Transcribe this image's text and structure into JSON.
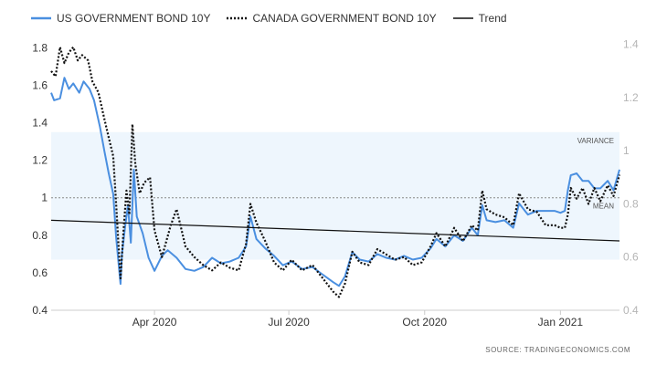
{
  "legend": {
    "us_label": "US GOVERNMENT BOND 10Y",
    "ca_label": "CANADA GOVERNMENT BOND 10Y",
    "trend_label": "Trend"
  },
  "annotations": {
    "variance": "VARIANCE",
    "mean": "MEAN"
  },
  "source": "SOURCE:  TRADINGECONOMICS.COM",
  "colors": {
    "us": "#4a8fe0",
    "ca": "#111111",
    "trend": "#111111",
    "variance_band": "#eef6fd"
  },
  "chart_data": {
    "type": "line",
    "x_range": [
      "2020-01-22",
      "2021-02-10"
    ],
    "x_tick_labels": [
      "Apr 2020",
      "Jul 2020",
      "Oct 2020",
      "Jan 2021"
    ],
    "x_ticks": [
      "2020-04-01",
      "2020-07-01",
      "2020-10-01",
      "2021-01-01"
    ],
    "y_left": {
      "ticks": [
        0.4,
        0.6,
        0.8,
        1,
        1.2,
        1.4,
        1.6,
        1.8
      ],
      "range": [
        0.4,
        1.86
      ]
    },
    "y_right": {
      "ticks": [
        0.4,
        0.6,
        0.8,
        1,
        1.2,
        1.4
      ],
      "range": [
        0.4,
        1.43
      ]
    },
    "variance_band": [
      0.67,
      1.35
    ],
    "mean": 1.0,
    "series": [
      {
        "name": "US GOVERNMENT BOND 10Y",
        "axis": "left",
        "style": "solid",
        "points": [
          [
            "2020-01-22",
            1.56
          ],
          [
            "2020-01-24",
            1.52
          ],
          [
            "2020-01-28",
            1.53
          ],
          [
            "2020-01-31",
            1.64
          ],
          [
            "2020-02-03",
            1.58
          ],
          [
            "2020-02-06",
            1.61
          ],
          [
            "2020-02-10",
            1.56
          ],
          [
            "2020-02-13",
            1.62
          ],
          [
            "2020-02-17",
            1.58
          ],
          [
            "2020-02-20",
            1.52
          ],
          [
            "2020-02-24",
            1.38
          ],
          [
            "2020-02-27",
            1.25
          ],
          [
            "2020-03-01",
            1.13
          ],
          [
            "2020-03-04",
            1.02
          ],
          [
            "2020-03-06",
            0.79
          ],
          [
            "2020-03-09",
            0.54
          ],
          [
            "2020-03-10",
            0.7
          ],
          [
            "2020-03-12",
            0.84
          ],
          [
            "2020-03-14",
            0.96
          ],
          [
            "2020-03-16",
            0.76
          ],
          [
            "2020-03-18",
            1.15
          ],
          [
            "2020-03-20",
            0.9
          ],
          [
            "2020-03-24",
            0.81
          ],
          [
            "2020-03-28",
            0.68
          ],
          [
            "2020-04-01",
            0.61
          ],
          [
            "2020-04-06",
            0.69
          ],
          [
            "2020-04-10",
            0.72
          ],
          [
            "2020-04-16",
            0.68
          ],
          [
            "2020-04-22",
            0.62
          ],
          [
            "2020-04-28",
            0.61
          ],
          [
            "2020-05-04",
            0.63
          ],
          [
            "2020-05-10",
            0.68
          ],
          [
            "2020-05-16",
            0.65
          ],
          [
            "2020-05-22",
            0.66
          ],
          [
            "2020-05-28",
            0.68
          ],
          [
            "2020-06-02",
            0.74
          ],
          [
            "2020-06-05",
            0.9
          ],
          [
            "2020-06-09",
            0.78
          ],
          [
            "2020-06-15",
            0.73
          ],
          [
            "2020-06-21",
            0.69
          ],
          [
            "2020-06-27",
            0.64
          ],
          [
            "2020-07-03",
            0.66
          ],
          [
            "2020-07-10",
            0.62
          ],
          [
            "2020-07-17",
            0.63
          ],
          [
            "2020-07-24",
            0.59
          ],
          [
            "2020-07-31",
            0.55
          ],
          [
            "2020-08-04",
            0.53
          ],
          [
            "2020-08-08",
            0.58
          ],
          [
            "2020-08-13",
            0.71
          ],
          [
            "2020-08-18",
            0.67
          ],
          [
            "2020-08-24",
            0.66
          ],
          [
            "2020-08-30",
            0.7
          ],
          [
            "2020-09-05",
            0.68
          ],
          [
            "2020-09-11",
            0.67
          ],
          [
            "2020-09-17",
            0.69
          ],
          [
            "2020-09-23",
            0.67
          ],
          [
            "2020-09-29",
            0.68
          ],
          [
            "2020-10-05",
            0.73
          ],
          [
            "2020-10-09",
            0.78
          ],
          [
            "2020-10-15",
            0.74
          ],
          [
            "2020-10-21",
            0.8
          ],
          [
            "2020-10-27",
            0.77
          ],
          [
            "2020-11-02",
            0.84
          ],
          [
            "2020-11-06",
            0.8
          ],
          [
            "2020-11-09",
            0.96
          ],
          [
            "2020-11-12",
            0.88
          ],
          [
            "2020-11-18",
            0.87
          ],
          [
            "2020-11-24",
            0.88
          ],
          [
            "2020-11-30",
            0.84
          ],
          [
            "2020-12-04",
            0.97
          ],
          [
            "2020-12-10",
            0.91
          ],
          [
            "2020-12-16",
            0.93
          ],
          [
            "2020-12-22",
            0.93
          ],
          [
            "2020-12-28",
            0.93
          ],
          [
            "2021-01-01",
            0.92
          ],
          [
            "2021-01-04",
            0.93
          ],
          [
            "2021-01-06",
            1.04
          ],
          [
            "2021-01-08",
            1.12
          ],
          [
            "2021-01-12",
            1.13
          ],
          [
            "2021-01-16",
            1.09
          ],
          [
            "2021-01-20",
            1.09
          ],
          [
            "2021-01-24",
            1.05
          ],
          [
            "2021-01-28",
            1.05
          ],
          [
            "2021-02-02",
            1.09
          ],
          [
            "2021-02-06",
            1.04
          ],
          [
            "2021-02-10",
            1.15
          ]
        ]
      },
      {
        "name": "CANADA GOVERNMENT BOND 10Y",
        "axis": "right",
        "style": "dotted",
        "points": [
          [
            "2020-01-22",
            1.3
          ],
          [
            "2020-01-25",
            1.28
          ],
          [
            "2020-01-28",
            1.39
          ],
          [
            "2020-01-31",
            1.33
          ],
          [
            "2020-02-03",
            1.37
          ],
          [
            "2020-02-06",
            1.39
          ],
          [
            "2020-02-09",
            1.34
          ],
          [
            "2020-02-12",
            1.36
          ],
          [
            "2020-02-16",
            1.34
          ],
          [
            "2020-02-19",
            1.26
          ],
          [
            "2020-02-23",
            1.22
          ],
          [
            "2020-02-27",
            1.12
          ],
          [
            "2020-03-01",
            1.05
          ],
          [
            "2020-03-04",
            0.98
          ],
          [
            "2020-03-06",
            0.8
          ],
          [
            "2020-03-08",
            0.61
          ],
          [
            "2020-03-09",
            0.52
          ],
          [
            "2020-03-11",
            0.7
          ],
          [
            "2020-03-13",
            0.85
          ],
          [
            "2020-03-15",
            0.76
          ],
          [
            "2020-03-17",
            1.1
          ],
          [
            "2020-03-19",
            0.95
          ],
          [
            "2020-03-22",
            0.84
          ],
          [
            "2020-03-25",
            0.88
          ],
          [
            "2020-03-29",
            0.9
          ],
          [
            "2020-04-01",
            0.7
          ],
          [
            "2020-04-06",
            0.6
          ],
          [
            "2020-04-12",
            0.72
          ],
          [
            "2020-04-16",
            0.78
          ],
          [
            "2020-04-22",
            0.64
          ],
          [
            "2020-04-28",
            0.6
          ],
          [
            "2020-05-04",
            0.57
          ],
          [
            "2020-05-10",
            0.55
          ],
          [
            "2020-05-16",
            0.58
          ],
          [
            "2020-05-22",
            0.56
          ],
          [
            "2020-05-28",
            0.55
          ],
          [
            "2020-06-02",
            0.65
          ],
          [
            "2020-06-05",
            0.8
          ],
          [
            "2020-06-09",
            0.73
          ],
          [
            "2020-06-15",
            0.66
          ],
          [
            "2020-06-21",
            0.58
          ],
          [
            "2020-06-27",
            0.55
          ],
          [
            "2020-07-03",
            0.59
          ],
          [
            "2020-07-10",
            0.55
          ],
          [
            "2020-07-17",
            0.57
          ],
          [
            "2020-07-24",
            0.52
          ],
          [
            "2020-07-31",
            0.47
          ],
          [
            "2020-08-04",
            0.45
          ],
          [
            "2020-08-08",
            0.5
          ],
          [
            "2020-08-13",
            0.62
          ],
          [
            "2020-08-18",
            0.58
          ],
          [
            "2020-08-24",
            0.57
          ],
          [
            "2020-08-30",
            0.63
          ],
          [
            "2020-09-05",
            0.61
          ],
          [
            "2020-09-11",
            0.59
          ],
          [
            "2020-09-17",
            0.6
          ],
          [
            "2020-09-23",
            0.57
          ],
          [
            "2020-09-29",
            0.58
          ],
          [
            "2020-10-05",
            0.64
          ],
          [
            "2020-10-09",
            0.69
          ],
          [
            "2020-10-15",
            0.64
          ],
          [
            "2020-10-21",
            0.71
          ],
          [
            "2020-10-27",
            0.66
          ],
          [
            "2020-11-02",
            0.72
          ],
          [
            "2020-11-06",
            0.7
          ],
          [
            "2020-11-09",
            0.85
          ],
          [
            "2020-11-12",
            0.78
          ],
          [
            "2020-11-18",
            0.76
          ],
          [
            "2020-11-24",
            0.75
          ],
          [
            "2020-11-30",
            0.72
          ],
          [
            "2020-12-04",
            0.84
          ],
          [
            "2020-12-10",
            0.78
          ],
          [
            "2020-12-16",
            0.77
          ],
          [
            "2020-12-22",
            0.72
          ],
          [
            "2020-12-28",
            0.72
          ],
          [
            "2021-01-01",
            0.71
          ],
          [
            "2021-01-04",
            0.71
          ],
          [
            "2021-01-06",
            0.76
          ],
          [
            "2021-01-08",
            0.86
          ],
          [
            "2021-01-12",
            0.82
          ],
          [
            "2021-01-16",
            0.86
          ],
          [
            "2021-01-20",
            0.8
          ],
          [
            "2021-01-24",
            0.86
          ],
          [
            "2021-01-28",
            0.81
          ],
          [
            "2021-02-02",
            0.87
          ],
          [
            "2021-02-06",
            0.83
          ],
          [
            "2021-02-10",
            0.91
          ]
        ]
      },
      {
        "name": "Trend",
        "axis": "left",
        "style": "solid",
        "points": [
          [
            "2020-01-22",
            0.88
          ],
          [
            "2021-02-10",
            0.77
          ]
        ]
      }
    ]
  }
}
